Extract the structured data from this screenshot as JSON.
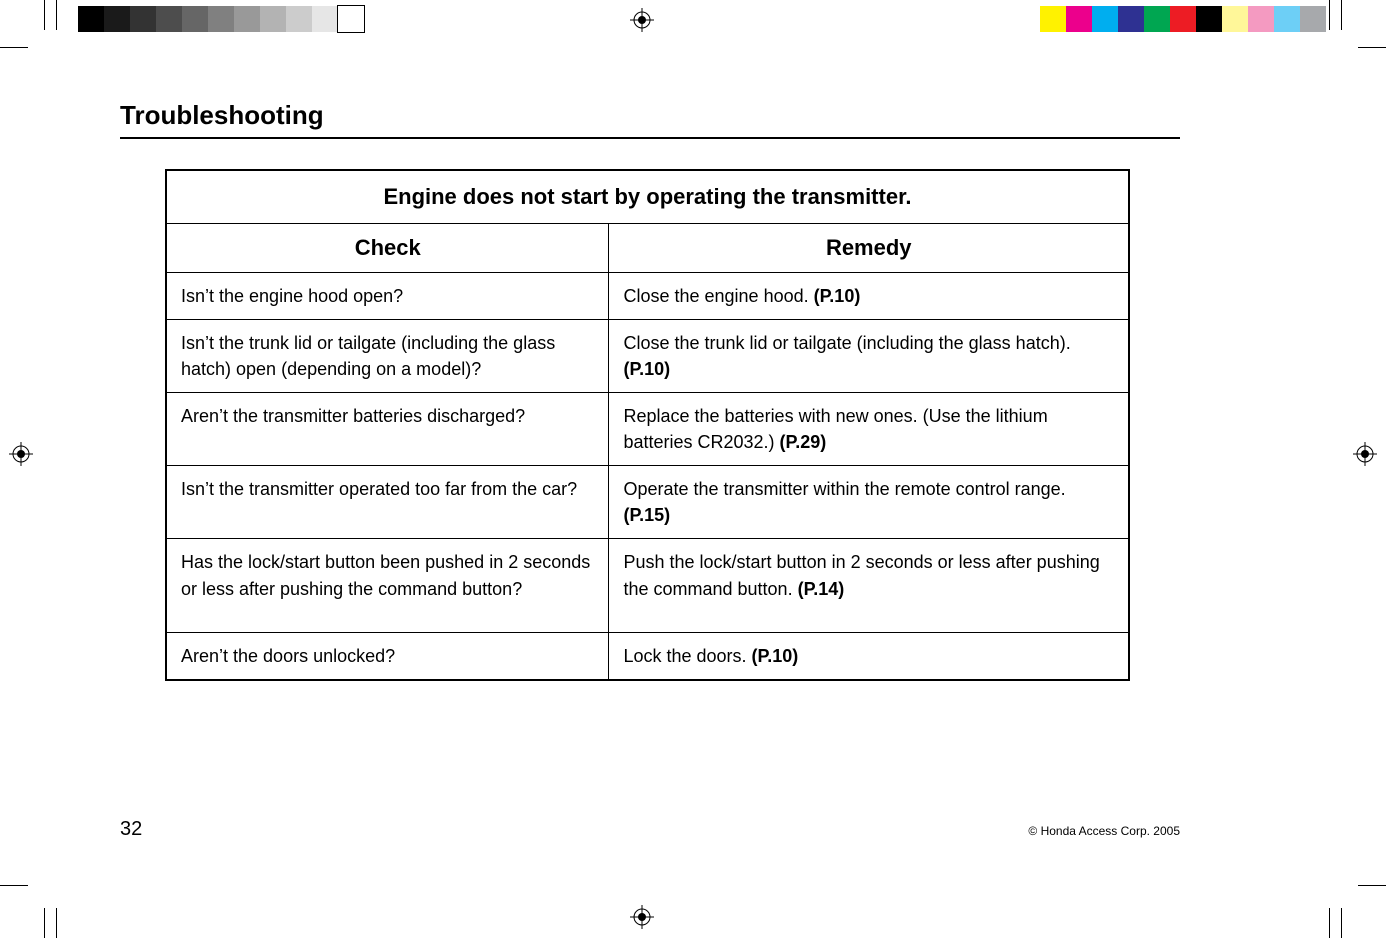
{
  "section_title": "Troubleshooting",
  "table": {
    "title": "Engine does not start by operating the transmitter.",
    "columns": [
      "Check",
      "Remedy"
    ],
    "rows": [
      {
        "check": "Isn’t the engine hood open?",
        "remedy_text": "Close the engine hood. ",
        "remedy_ref": "(P.10)"
      },
      {
        "check": "Isn’t the trunk lid or tailgate (including the glass hatch) open (depending on a model)?",
        "remedy_text": "Close the trunk lid or tailgate (including the glass hatch). ",
        "remedy_ref": "(P.10)"
      },
      {
        "check": "Aren’t the transmitter batteries discharged?",
        "remedy_text": "Replace the batteries with new ones. (Use the lithium batteries CR2032.) ",
        "remedy_ref": "(P.29)"
      },
      {
        "check": "Isn’t the transmitter operated too far from the car?",
        "remedy_text": "Operate the transmitter within the remote control range. ",
        "remedy_ref": "(P.15)"
      },
      {
        "check": "Has the lock/start button been pushed in 2 seconds or less after pushing the command button?",
        "remedy_text": "Push the lock/start button in 2 seconds or less after pushing the command button. ",
        "remedy_ref": "(P.14)"
      },
      {
        "check": "Aren’t the doors unlocked?",
        "remedy_text": "Lock the doors. ",
        "remedy_ref": "(P.10)"
      }
    ]
  },
  "page_number": "32",
  "copyright": "© Honda Access Corp. 2005",
  "print_marks": {
    "gray_bar_colors": [
      "#000000",
      "#1a1a1a",
      "#333333",
      "#4d4d4d",
      "#666666",
      "#808080",
      "#999999",
      "#b3b3b3",
      "#cccccc",
      "#e6e6e6",
      "#ffffff"
    ],
    "color_bar_colors": [
      "#fff200",
      "#ec008c",
      "#00aeef",
      "#2e3192",
      "#00a651",
      "#ed1c24",
      "#000000",
      "#fff799",
      "#f49ac1",
      "#6dcff6",
      "#a7a9ac"
    ]
  }
}
